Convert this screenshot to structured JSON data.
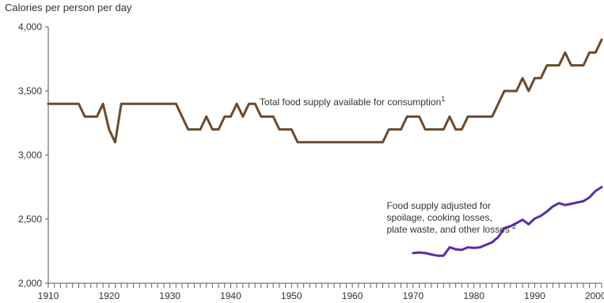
{
  "chart_data": {
    "type": "line",
    "title": "",
    "ylabel": "Calories per person per day",
    "xlabel": "",
    "xlim": [
      1910,
      2001
    ],
    "ylim": [
      2000,
      4000
    ],
    "yticks": [
      2000,
      2500,
      3000,
      3500,
      4000
    ],
    "ytick_labels": [
      "2,000",
      "2,500",
      "3,000",
      "3,500",
      "4,000"
    ],
    "xticks": [
      1910,
      1920,
      1930,
      1940,
      1950,
      1960,
      1970,
      1980,
      1990,
      2000
    ],
    "xtick_labels": [
      "1910",
      "1920",
      "1930",
      "1940",
      "1950",
      "1960",
      "1970",
      "1980",
      "1990",
      "2000"
    ],
    "grid": false,
    "series": [
      {
        "name": "Total food supply available for consumption",
        "label": "Total food supply available for consumption",
        "label_sup": "1",
        "color": "#6b4a2e",
        "x": [
          1910,
          1911,
          1912,
          1913,
          1914,
          1915,
          1916,
          1917,
          1918,
          1919,
          1920,
          1921,
          1922,
          1923,
          1924,
          1925,
          1926,
          1927,
          1928,
          1929,
          1930,
          1931,
          1932,
          1933,
          1934,
          1935,
          1936,
          1937,
          1938,
          1939,
          1940,
          1941,
          1942,
          1943,
          1944,
          1945,
          1946,
          1947,
          1948,
          1949,
          1950,
          1951,
          1952,
          1953,
          1954,
          1955,
          1956,
          1957,
          1958,
          1959,
          1960,
          1961,
          1962,
          1963,
          1964,
          1965,
          1966,
          1967,
          1968,
          1969,
          1970,
          1971,
          1972,
          1973,
          1974,
          1975,
          1976,
          1977,
          1978,
          1979,
          1980,
          1981,
          1982,
          1983,
          1984,
          1985,
          1986,
          1987,
          1988,
          1989,
          1990,
          1991,
          1992,
          1993,
          1994,
          1995,
          1996,
          1997,
          1998,
          1999,
          2000,
          2001
        ],
        "y": [
          3400,
          3400,
          3400,
          3400,
          3400,
          3400,
          3300,
          3300,
          3300,
          3400,
          3200,
          3100,
          3400,
          3400,
          3400,
          3400,
          3400,
          3400,
          3400,
          3400,
          3400,
          3400,
          3300,
          3200,
          3200,
          3200,
          3300,
          3200,
          3200,
          3300,
          3300,
          3400,
          3300,
          3400,
          3400,
          3300,
          3300,
          3300,
          3200,
          3200,
          3200,
          3100,
          3100,
          3100,
          3100,
          3100,
          3100,
          3100,
          3100,
          3100,
          3100,
          3100,
          3100,
          3100,
          3100,
          3100,
          3200,
          3200,
          3200,
          3300,
          3300,
          3300,
          3200,
          3200,
          3200,
          3200,
          3300,
          3200,
          3200,
          3300,
          3300,
          3300,
          3300,
          3300,
          3400,
          3500,
          3500,
          3500,
          3600,
          3500,
          3600,
          3600,
          3700,
          3700,
          3700,
          3800,
          3700,
          3700,
          3700,
          3800,
          3800,
          3900
        ]
      },
      {
        "name": "Food supply adjusted for spoilage, cooking losses, plate waste, and other losses",
        "label_lines": [
          "Food supply adjusted for",
          "spoilage, cooking losses,",
          "plate waste, and other losses"
        ],
        "label_sup": "2",
        "color": "#5a2ea6",
        "x": [
          1970,
          1971,
          1972,
          1973,
          1974,
          1975,
          1976,
          1977,
          1978,
          1979,
          1980,
          1981,
          1982,
          1983,
          1984,
          1985,
          1986,
          1987,
          1988,
          1989,
          1990,
          1991,
          1992,
          1993,
          1994,
          1995,
          1996,
          1997,
          1998,
          1999,
          2000,
          2001
        ],
        "y": [
          2235,
          2240,
          2235,
          2225,
          2215,
          2215,
          2280,
          2265,
          2260,
          2280,
          2275,
          2280,
          2300,
          2320,
          2360,
          2430,
          2445,
          2470,
          2495,
          2460,
          2505,
          2525,
          2560,
          2600,
          2625,
          2610,
          2620,
          2630,
          2640,
          2670,
          2720,
          2750
        ]
      }
    ]
  }
}
